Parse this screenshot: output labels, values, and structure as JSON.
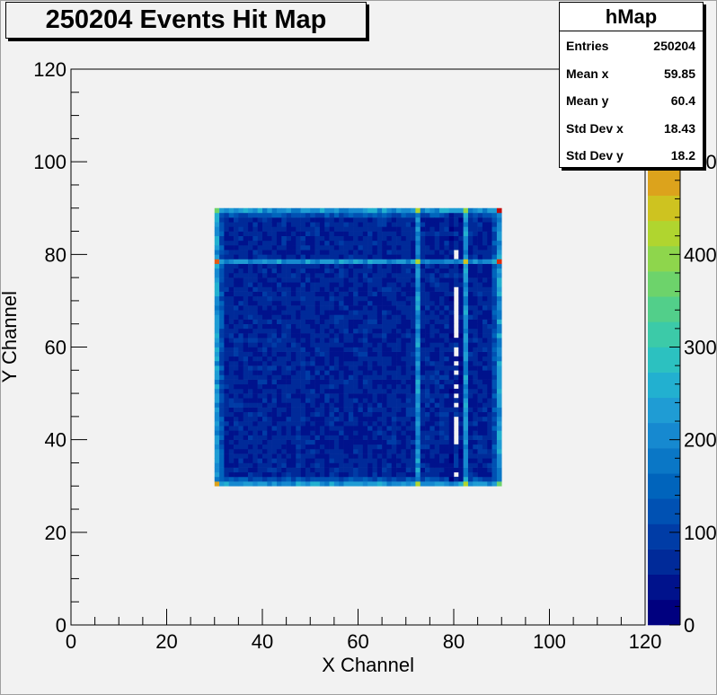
{
  "chart_data": {
    "type": "heatmap",
    "title": "250204 Events Hit Map",
    "xlabel": "X Channel",
    "ylabel": "Y Channel",
    "xlim": [
      0,
      120
    ],
    "ylim": [
      0,
      120
    ],
    "x_ticks": [
      "0",
      "20",
      "40",
      "60",
      "80",
      "100",
      "120"
    ],
    "y_ticks": [
      "0",
      "20",
      "40",
      "60",
      "80",
      "100",
      "120"
    ],
    "z_ticks": [
      "0",
      "100",
      "200",
      "300",
      "400",
      "500"
    ],
    "zlim": [
      0,
      600
    ],
    "bin_region": {
      "x": [
        30,
        90
      ],
      "y": [
        30,
        90
      ],
      "bin_width": 1
    },
    "typical_bin_value": 60,
    "hot_rows_y": [
      30,
      78,
      89
    ],
    "hot_cols_x": [
      30,
      72,
      82,
      89
    ],
    "dead_column_x": 80,
    "dead_rows_in_dead_column": [
      32,
      39,
      40,
      41,
      42,
      43,
      44,
      47,
      49,
      51,
      54,
      56,
      58,
      59,
      62,
      63,
      64,
      65,
      66,
      67,
      68,
      69,
      70,
      71,
      72,
      79,
      80
    ],
    "corner_hot": [
      {
        "x": 30,
        "y": 30,
        "value": 480
      },
      {
        "x": 89,
        "y": 30,
        "value": 380
      },
      {
        "x": 30,
        "y": 78,
        "value": 520
      },
      {
        "x": 89,
        "y": 78,
        "value": 560
      },
      {
        "x": 89,
        "y": 89,
        "value": 600
      },
      {
        "x": 82,
        "y": 78,
        "value": 450
      },
      {
        "x": 82,
        "y": 89,
        "value": 400
      },
      {
        "x": 30,
        "y": 89,
        "value": 380
      }
    ],
    "grid": false,
    "legend": "none",
    "palette": [
      "#00007f",
      "#00128c",
      "#002a99",
      "#003ca6",
      "#0051b3",
      "#0064bc",
      "#0a77c6",
      "#1689d0",
      "#1f9cd4",
      "#22b0d0",
      "#2cc1c0",
      "#3ccaa8",
      "#52cf8a",
      "#6dd36b",
      "#8ed64c",
      "#b0d52f",
      "#cec320",
      "#dca31c",
      "#e08019",
      "#e15b14",
      "#dc2d0e",
      "#c00d0d"
    ]
  },
  "stats": {
    "name": "hMap",
    "rows": [
      {
        "label": "Entries",
        "value": "250204"
      },
      {
        "label": "Mean x",
        "value": "59.85"
      },
      {
        "label": "Mean y",
        "value": "60.4"
      },
      {
        "label": "Std Dev x",
        "value": "18.43"
      },
      {
        "label": "Std Dev y",
        "value": "18.2"
      }
    ]
  }
}
